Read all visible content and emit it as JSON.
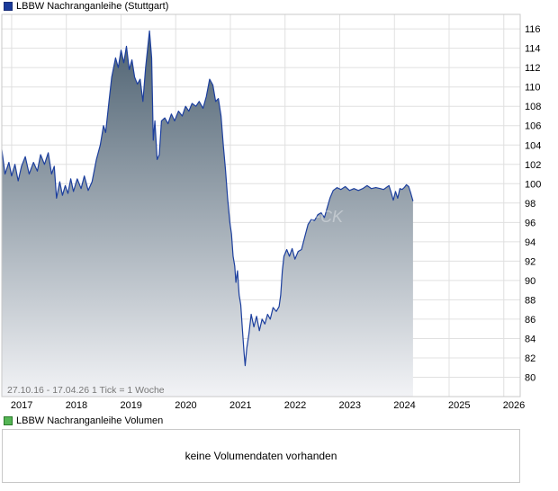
{
  "legend": {
    "price_series": "LBBW Nachranganleihe (Stuttgart)",
    "volume_series": "LBBW Nachranganleihe Volumen"
  },
  "chart_info": {
    "period": "27.10.16 - 17.04.26",
    "tick_info": "1 Tick = 1 Woche",
    "watermark": "FCK"
  },
  "volume_panel": {
    "message": "keine Volumendaten vorhanden"
  },
  "colors": {
    "line": "#1c3f9e",
    "fill_top": "#4c6070",
    "fill_bottom": "#f2f3f6",
    "grid": "#e0e0e0",
    "frame": "#c8c8c8"
  },
  "chart_data": {
    "type": "area",
    "title": "LBBW Nachranganleihe (Stuttgart)",
    "xlabel": "",
    "ylabel": "",
    "xlim": [
      2016.82,
      2026.3
    ],
    "ylim": [
      78,
      117.5
    ],
    "y_ticks": [
      80,
      82,
      84,
      86,
      88,
      90,
      92,
      94,
      96,
      98,
      100,
      102,
      104,
      106,
      108,
      110,
      112,
      114,
      116
    ],
    "x_ticks": [
      {
        "label": "2017",
        "x": 2017.0
      },
      {
        "label": "2018",
        "x": 2018.0
      },
      {
        "label": "2019",
        "x": 2019.0
      },
      {
        "label": "2020",
        "x": 2020.0
      },
      {
        "label": "2021",
        "x": 2021.0
      },
      {
        "label": "2022",
        "x": 2022.0
      },
      {
        "label": "2023",
        "x": 2023.0
      },
      {
        "label": "2024",
        "x": 2024.0
      },
      {
        "label": "2025",
        "x": 2025.0
      },
      {
        "label": "2026",
        "x": 2026.0
      }
    ],
    "grid": true,
    "series": [
      {
        "values": [
          [
            2016.82,
            103.5
          ],
          [
            2016.88,
            101.0
          ],
          [
            2016.95,
            102.2
          ],
          [
            2017.0,
            100.8
          ],
          [
            2017.06,
            102.0
          ],
          [
            2017.12,
            100.3
          ],
          [
            2017.18,
            101.8
          ],
          [
            2017.25,
            102.8
          ],
          [
            2017.32,
            101.0
          ],
          [
            2017.4,
            102.2
          ],
          [
            2017.47,
            101.3
          ],
          [
            2017.53,
            103.0
          ],
          [
            2017.6,
            102.0
          ],
          [
            2017.67,
            103.2
          ],
          [
            2017.73,
            101.0
          ],
          [
            2017.78,
            101.8
          ],
          [
            2017.82,
            98.5
          ],
          [
            2017.88,
            100.2
          ],
          [
            2017.93,
            98.8
          ],
          [
            2017.98,
            99.8
          ],
          [
            2018.03,
            99.0
          ],
          [
            2018.08,
            100.5
          ],
          [
            2018.13,
            99.2
          ],
          [
            2018.2,
            100.5
          ],
          [
            2018.27,
            99.5
          ],
          [
            2018.33,
            100.8
          ],
          [
            2018.4,
            99.3
          ],
          [
            2018.47,
            100.2
          ],
          [
            2018.55,
            102.5
          ],
          [
            2018.62,
            104.0
          ],
          [
            2018.68,
            106.0
          ],
          [
            2018.72,
            105.3
          ],
          [
            2018.78,
            108.5
          ],
          [
            2018.83,
            111.0
          ],
          [
            2018.9,
            113.0
          ],
          [
            2018.95,
            112.0
          ],
          [
            2019.0,
            113.8
          ],
          [
            2019.05,
            112.5
          ],
          [
            2019.1,
            114.2
          ],
          [
            2019.15,
            111.8
          ],
          [
            2019.2,
            112.8
          ],
          [
            2019.25,
            111.0
          ],
          [
            2019.3,
            110.3
          ],
          [
            2019.35,
            110.8
          ],
          [
            2019.4,
            108.5
          ],
          [
            2019.45,
            112.0
          ],
          [
            2019.52,
            115.8
          ],
          [
            2019.56,
            113.0
          ],
          [
            2019.59,
            104.5
          ],
          [
            2019.62,
            106.5
          ],
          [
            2019.66,
            102.5
          ],
          [
            2019.7,
            103.0
          ],
          [
            2019.74,
            106.5
          ],
          [
            2019.8,
            106.8
          ],
          [
            2019.86,
            106.2
          ],
          [
            2019.92,
            107.2
          ],
          [
            2019.98,
            106.5
          ],
          [
            2020.05,
            107.5
          ],
          [
            2020.12,
            107.0
          ],
          [
            2020.18,
            108.0
          ],
          [
            2020.24,
            107.5
          ],
          [
            2020.3,
            108.3
          ],
          [
            2020.37,
            108.0
          ],
          [
            2020.43,
            108.5
          ],
          [
            2020.5,
            107.8
          ],
          [
            2020.56,
            109.0
          ],
          [
            2020.62,
            110.8
          ],
          [
            2020.68,
            110.2
          ],
          [
            2020.73,
            108.5
          ],
          [
            2020.78,
            108.8
          ],
          [
            2020.83,
            107.0
          ],
          [
            2020.87,
            104.0
          ],
          [
            2020.91,
            101.5
          ],
          [
            2020.95,
            98.5
          ],
          [
            2020.99,
            96.0
          ],
          [
            2021.02,
            94.8
          ],
          [
            2021.05,
            92.5
          ],
          [
            2021.08,
            91.5
          ],
          [
            2021.1,
            89.8
          ],
          [
            2021.13,
            91.0
          ],
          [
            2021.16,
            88.5
          ],
          [
            2021.19,
            87.5
          ],
          [
            2021.22,
            85.0
          ],
          [
            2021.25,
            82.5
          ],
          [
            2021.27,
            81.2
          ],
          [
            2021.3,
            83.0
          ],
          [
            2021.34,
            84.5
          ],
          [
            2021.38,
            86.5
          ],
          [
            2021.43,
            85.2
          ],
          [
            2021.48,
            86.3
          ],
          [
            2021.53,
            84.8
          ],
          [
            2021.58,
            86.0
          ],
          [
            2021.63,
            85.5
          ],
          [
            2021.68,
            86.5
          ],
          [
            2021.73,
            86.0
          ],
          [
            2021.78,
            87.2
          ],
          [
            2021.84,
            86.8
          ],
          [
            2021.89,
            87.3
          ],
          [
            2021.92,
            88.5
          ],
          [
            2021.95,
            91.0
          ],
          [
            2021.98,
            92.5
          ],
          [
            2022.03,
            93.2
          ],
          [
            2022.08,
            92.5
          ],
          [
            2022.13,
            93.3
          ],
          [
            2022.18,
            92.2
          ],
          [
            2022.24,
            93.0
          ],
          [
            2022.3,
            93.2
          ],
          [
            2022.36,
            94.5
          ],
          [
            2022.42,
            95.8
          ],
          [
            2022.48,
            96.3
          ],
          [
            2022.54,
            96.2
          ],
          [
            2022.6,
            96.8
          ],
          [
            2022.66,
            97.0
          ],
          [
            2022.72,
            96.5
          ],
          [
            2022.77,
            97.5
          ],
          [
            2022.82,
            98.5
          ],
          [
            2022.88,
            99.3
          ],
          [
            2022.95,
            99.6
          ],
          [
            2023.02,
            99.4
          ],
          [
            2023.1,
            99.7
          ],
          [
            2023.18,
            99.3
          ],
          [
            2023.26,
            99.5
          ],
          [
            2023.34,
            99.3
          ],
          [
            2023.42,
            99.5
          ],
          [
            2023.5,
            99.8
          ],
          [
            2023.58,
            99.5
          ],
          [
            2023.66,
            99.6
          ],
          [
            2023.74,
            99.5
          ],
          [
            2023.8,
            99.4
          ],
          [
            2023.85,
            99.6
          ],
          [
            2023.9,
            99.8
          ],
          [
            2023.94,
            99.1
          ],
          [
            2023.98,
            98.3
          ],
          [
            2024.02,
            99.2
          ],
          [
            2024.06,
            98.5
          ],
          [
            2024.1,
            99.5
          ],
          [
            2024.14,
            99.4
          ],
          [
            2024.18,
            99.6
          ],
          [
            2024.22,
            99.9
          ],
          [
            2024.26,
            99.7
          ],
          [
            2024.3,
            99.0
          ],
          [
            2024.34,
            98.2
          ]
        ]
      }
    ]
  }
}
